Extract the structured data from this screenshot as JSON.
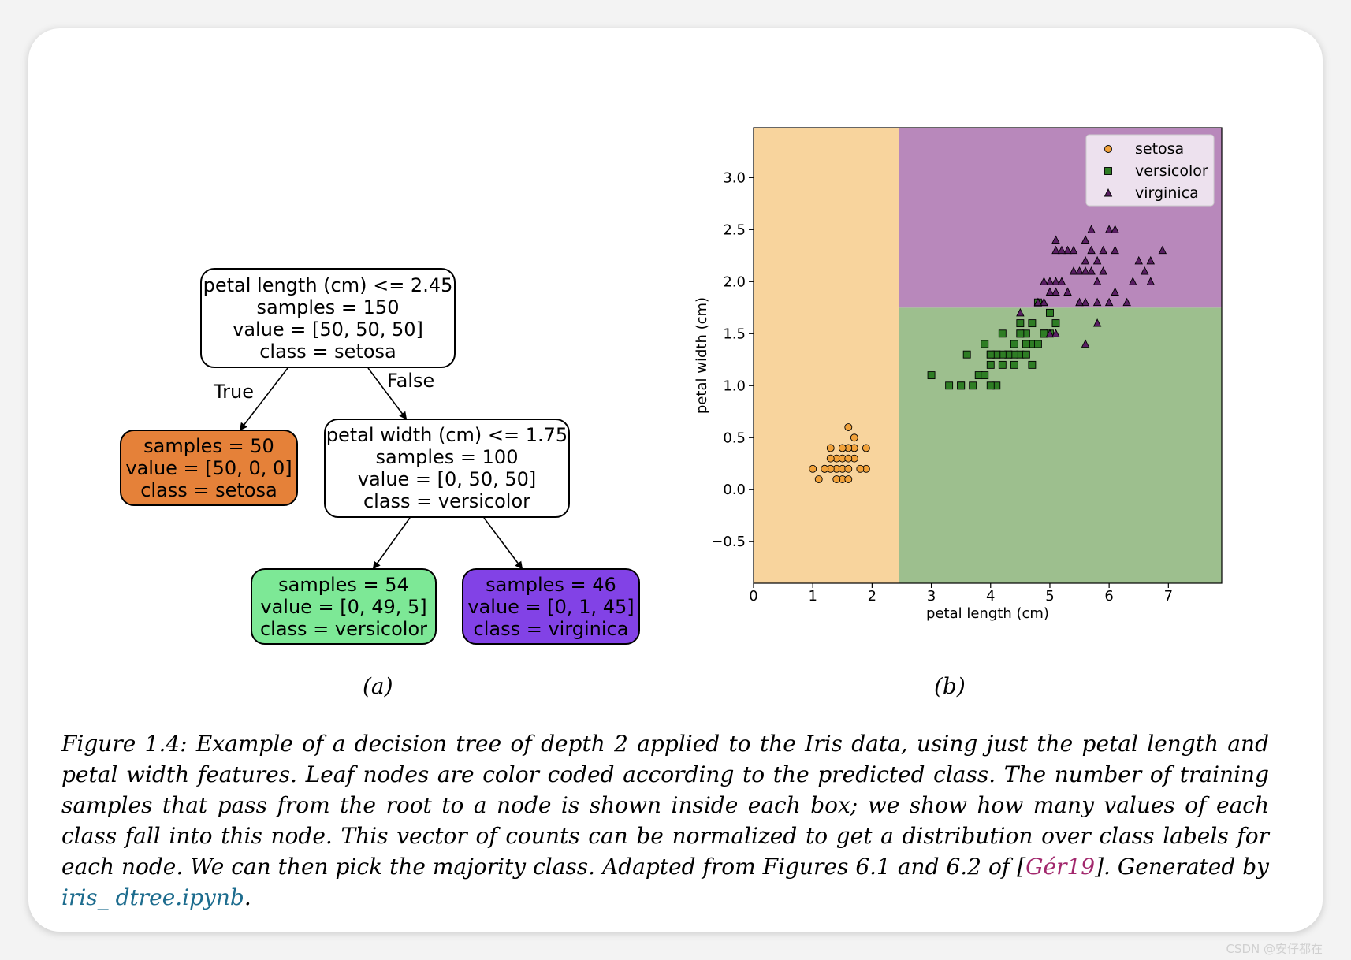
{
  "tree": {
    "root": {
      "lines": [
        "petal length (cm) <= 2.45",
        "samples = 150",
        "value = [50, 50, 50]",
        "class = setosa"
      ]
    },
    "left_leaf": {
      "lines": [
        "samples = 50",
        "value = [50, 0, 0]",
        "class = setosa"
      ],
      "color": "#e58139"
    },
    "split": {
      "lines": [
        "petal width (cm) <= 1.75",
        "samples = 100",
        "value = [0, 50, 50]",
        "class = versicolor"
      ]
    },
    "leaf_versicolor": {
      "lines": [
        "samples = 54",
        "value = [0, 49, 5]",
        "class = versicolor"
      ],
      "color": "#7de896"
    },
    "leaf_virginica": {
      "lines": [
        "samples = 46",
        "value = [0, 1, 45]",
        "class = virginica"
      ],
      "color": "#8242e6"
    },
    "edge_true": "True",
    "edge_false": "False"
  },
  "label_a": "(a)",
  "label_b": "(b)",
  "chart_data": {
    "type": "scatter",
    "xlabel": "petal length (cm)",
    "ylabel": "petal width (cm)",
    "xlim": [
      0,
      7.9
    ],
    "ylim": [
      -0.9,
      3.48
    ],
    "xticks": [
      0,
      1,
      2,
      3,
      4,
      5,
      6,
      7
    ],
    "yticks": [
      -0.5,
      0.0,
      0.5,
      1.0,
      1.5,
      2.0,
      2.5,
      3.0
    ],
    "ytick_labels": [
      "−0.5",
      "0.0",
      "0.5",
      "1.0",
      "1.5",
      "2.0",
      "2.5",
      "3.0"
    ],
    "legend_position": "top-right",
    "regions": [
      {
        "class": "setosa",
        "x": [
          0,
          2.45
        ],
        "y": [
          -0.9,
          3.48
        ],
        "color": "#f8d49d"
      },
      {
        "class": "versicolor",
        "x": [
          2.45,
          7.9
        ],
        "y": [
          -0.9,
          1.75
        ],
        "color": "#9dbf8e"
      },
      {
        "class": "virginica",
        "x": [
          2.45,
          7.9
        ],
        "y": [
          1.75,
          3.48
        ],
        "color": "#b888bb"
      }
    ],
    "series": [
      {
        "name": "setosa",
        "marker": "circle",
        "color": "#f2a23a",
        "points": [
          [
            1.4,
            0.2
          ],
          [
            1.3,
            0.2
          ],
          [
            1.5,
            0.2
          ],
          [
            1.7,
            0.4
          ],
          [
            1.4,
            0.3
          ],
          [
            1.5,
            0.1
          ],
          [
            1.1,
            0.1
          ],
          [
            1.2,
            0.2
          ],
          [
            1.7,
            0.3
          ],
          [
            1.0,
            0.2
          ],
          [
            1.9,
            0.2
          ],
          [
            1.6,
            0.4
          ],
          [
            1.6,
            0.2
          ],
          [
            1.6,
            0.6
          ],
          [
            1.9,
            0.4
          ],
          [
            1.3,
            0.3
          ],
          [
            1.5,
            0.4
          ],
          [
            1.6,
            0.1
          ],
          [
            1.4,
            0.1
          ],
          [
            1.2,
            0.2
          ],
          [
            1.3,
            0.4
          ],
          [
            1.5,
            0.3
          ],
          [
            1.6,
            0.3
          ],
          [
            1.7,
            0.5
          ],
          [
            1.8,
            0.2
          ]
        ]
      },
      {
        "name": "versicolor",
        "marker": "square",
        "color": "#2e7d24",
        "points": [
          [
            4.7,
            1.4
          ],
          [
            4.5,
            1.5
          ],
          [
            4.9,
            1.5
          ],
          [
            4.0,
            1.3
          ],
          [
            4.6,
            1.5
          ],
          [
            3.3,
            1.0
          ],
          [
            3.9,
            1.4
          ],
          [
            3.5,
            1.0
          ],
          [
            4.2,
            1.5
          ],
          [
            4.7,
            1.6
          ],
          [
            3.6,
            1.3
          ],
          [
            4.4,
            1.4
          ],
          [
            4.1,
            1.0
          ],
          [
            4.5,
            1.3
          ],
          [
            4.8,
            1.8
          ],
          [
            4.3,
            1.3
          ],
          [
            5.0,
            1.7
          ],
          [
            3.8,
            1.1
          ],
          [
            3.7,
            1.0
          ],
          [
            5.1,
            1.6
          ],
          [
            4.4,
            1.3
          ],
          [
            3.0,
            1.1
          ],
          [
            4.6,
            1.4
          ],
          [
            4.2,
            1.2
          ],
          [
            4.1,
            1.3
          ],
          [
            4.0,
            1.2
          ],
          [
            3.9,
            1.1
          ],
          [
            4.8,
            1.4
          ],
          [
            4.5,
            1.6
          ],
          [
            4.3,
            1.3
          ],
          [
            4.7,
            1.2
          ],
          [
            4.9,
            1.5
          ],
          [
            4.4,
            1.2
          ],
          [
            4.6,
            1.3
          ],
          [
            3.5,
            1.0
          ],
          [
            4.0,
            1.0
          ],
          [
            4.2,
            1.3
          ],
          [
            5.0,
            1.5
          ],
          [
            4.5,
            1.5
          ],
          [
            4.9,
            1.5
          ],
          [
            4.1,
            1.3
          ],
          [
            4.0,
            1.3
          ]
        ]
      },
      {
        "name": "virginica",
        "marker": "triangle",
        "color": "#5a1e64",
        "points": [
          [
            6.0,
            2.5
          ],
          [
            5.1,
            1.9
          ],
          [
            5.9,
            2.1
          ],
          [
            5.6,
            1.8
          ],
          [
            5.8,
            2.2
          ],
          [
            6.6,
            2.1
          ],
          [
            4.5,
            1.7
          ],
          [
            6.3,
            1.8
          ],
          [
            5.8,
            1.8
          ],
          [
            6.1,
            2.5
          ],
          [
            5.1,
            2.0
          ],
          [
            5.3,
            1.9
          ],
          [
            5.5,
            2.1
          ],
          [
            5.0,
            2.0
          ],
          [
            5.1,
            2.4
          ],
          [
            5.3,
            2.3
          ],
          [
            5.5,
            1.8
          ],
          [
            6.7,
            2.2
          ],
          [
            6.9,
            2.3
          ],
          [
            5.0,
            1.5
          ],
          [
            5.7,
            2.3
          ],
          [
            4.9,
            2.0
          ],
          [
            6.7,
            2.0
          ],
          [
            4.9,
            1.8
          ],
          [
            5.7,
            2.1
          ],
          [
            6.0,
            1.8
          ],
          [
            4.8,
            1.8
          ],
          [
            4.9,
            1.8
          ],
          [
            5.6,
            2.1
          ],
          [
            5.8,
            1.6
          ],
          [
            6.1,
            1.9
          ],
          [
            6.4,
            2.0
          ],
          [
            5.6,
            2.2
          ],
          [
            5.1,
            1.5
          ],
          [
            5.6,
            1.4
          ],
          [
            6.1,
            2.3
          ],
          [
            5.6,
            2.4
          ],
          [
            5.5,
            1.8
          ],
          [
            4.8,
            1.8
          ],
          [
            5.4,
            2.1
          ],
          [
            5.6,
            2.4
          ],
          [
            5.1,
            2.3
          ],
          [
            5.9,
            2.3
          ],
          [
            5.7,
            2.5
          ],
          [
            5.2,
            2.3
          ],
          [
            5.0,
            1.9
          ],
          [
            5.2,
            2.0
          ],
          [
            5.4,
            2.3
          ],
          [
            6.5,
            2.2
          ],
          [
            5.8,
            2.0
          ]
        ]
      }
    ]
  },
  "caption": {
    "main": "Figure 1.4: Example of a decision tree of depth 2 applied to the Iris data, using just the petal length and petal width features. Leaf nodes are color coded according to the predicted class. The number of training samples that pass from the root to a node is shown inside each box; we show how many values of each class fall into this node. This vector of counts can be normalized to get a distribution over class labels for each node. We can then pick the majority class. Adapted from Figures 6.1 and 6.2 of [",
    "citation": "Gér19",
    "middle": "]. Generated by ",
    "link": "iris_ dtree.ipynb",
    "end": "."
  },
  "watermark": "CSDN @安仔都在"
}
